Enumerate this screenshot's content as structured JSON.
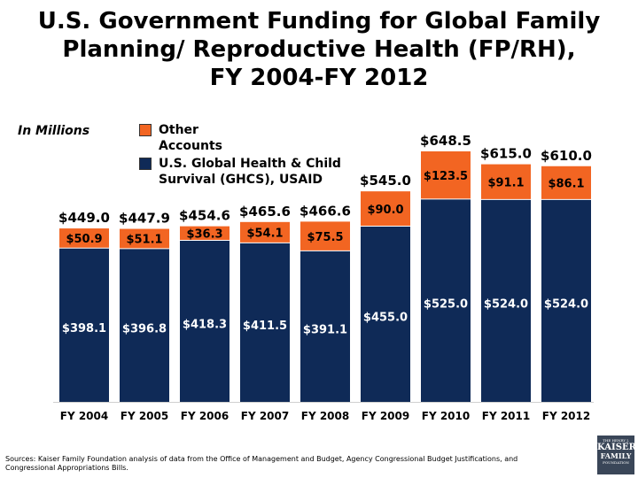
{
  "title_lines": [
    "U.S. Government Funding for Global Family",
    "Planning/ Reproductive Health (FP/RH),",
    "FY 2004-FY 2012"
  ],
  "units_label": "In Millions",
  "legend": [
    {
      "label": "Other Accounts",
      "color": "#f26522"
    },
    {
      "label": "U.S. Global Health & Child Survival (GHCS), USAID",
      "color": "#0f2a57"
    }
  ],
  "source": "Sources:  Kaiser Family Foundation analysis of data from the Office of Management and Budget, Agency Congressional Budget Justifications, and  Congressional Appropriations Bills.",
  "logo": {
    "line1": "THE HENRY J.",
    "line2": "KAISER",
    "line3": "FAMILY",
    "line4": "FOUNDATION"
  },
  "chart_data": {
    "type": "bar",
    "stacked": true,
    "categories": [
      "FY 2004",
      "FY 2005",
      "FY 2006",
      "FY 2007",
      "FY 2008",
      "FY 2009",
      "FY 2010",
      "FY 2011",
      "FY 2012"
    ],
    "series": [
      {
        "name": "U.S. Global Health & Child Survival (GHCS), USAID",
        "color": "#0f2a57",
        "values": [
          398.1,
          396.8,
          418.3,
          411.5,
          391.1,
          455.0,
          525.0,
          524.0,
          524.0
        ],
        "labels": [
          "$398.1",
          "$396.8",
          "$418.3",
          "$411.5",
          "$391.1",
          "$455.0",
          "$525.0",
          "$524.0",
          "$524.0"
        ]
      },
      {
        "name": "Other Accounts",
        "color": "#f26522",
        "values": [
          50.9,
          51.1,
          36.3,
          54.1,
          75.5,
          90.0,
          123.5,
          91.1,
          86.1
        ],
        "labels": [
          "$50.9",
          "$51.1",
          "$36.3",
          "$54.1",
          "$75.5",
          "$90.0",
          "$123.5",
          "$91.1",
          "$86.1"
        ]
      }
    ],
    "totals": [
      449.0,
      447.9,
      454.6,
      465.6,
      466.6,
      545.0,
      648.5,
      615.0,
      610.0
    ],
    "total_labels": [
      "$449.0",
      "$447.9",
      "$454.6",
      "$465.6",
      "$466.6",
      "$545.0",
      "$648.5",
      "$615.0",
      "$610.0"
    ],
    "ylim": [
      0,
      700
    ],
    "grid": false,
    "legend_position": "top-left"
  }
}
